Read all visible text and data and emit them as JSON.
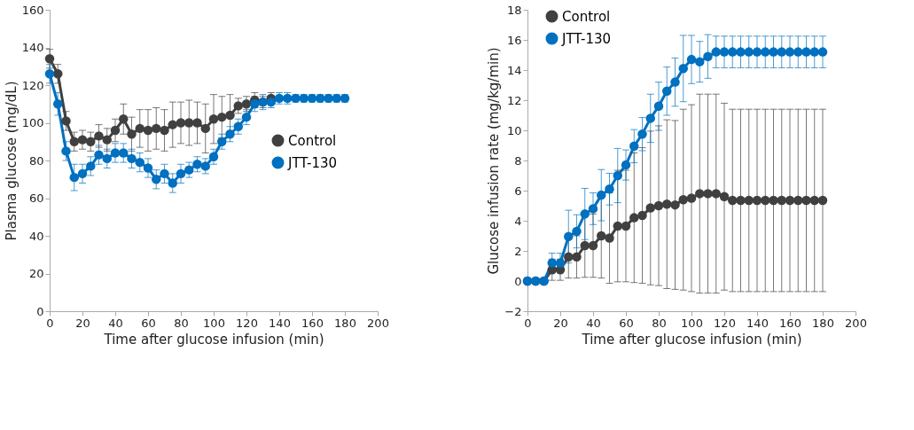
{
  "chart_data": [
    {
      "type": "line",
      "xlabel": "Time after glucose infusion (min)",
      "ylabel": "Plasma glucose (mg/dL)",
      "x": [
        0,
        5,
        10,
        15,
        20,
        25,
        30,
        35,
        40,
        45,
        50,
        55,
        60,
        65,
        70,
        75,
        80,
        85,
        90,
        95,
        100,
        105,
        110,
        115,
        120,
        125,
        130,
        135,
        140,
        145,
        150,
        155,
        160,
        165,
        170,
        175,
        180
      ],
      "xlim": [
        0,
        200
      ],
      "xticks": [
        0,
        20,
        40,
        60,
        80,
        100,
        120,
        140,
        160,
        180,
        200
      ],
      "ylim": [
        0,
        160
      ],
      "yticks": [
        0,
        20,
        40,
        60,
        80,
        100,
        120,
        140,
        160
      ],
      "grid": false,
      "legend": "right",
      "marker": "circle",
      "line_style": "solid",
      "series": [
        {
          "name": "Control",
          "color": "#404040",
          "values": [
            134,
            126,
            101,
            90,
            91,
            90,
            93,
            91,
            96,
            102,
            94,
            97,
            96,
            97,
            96,
            99,
            100,
            100,
            100,
            97,
            102,
            103,
            104,
            109,
            110,
            112,
            111,
            113,
            null,
            null,
            null,
            null,
            null,
            null,
            null,
            null,
            null
          ],
          "errors": [
            5,
            5,
            5,
            5,
            5,
            5,
            6,
            6,
            6,
            8,
            9,
            10,
            11,
            11,
            11,
            12,
            11,
            12,
            11,
            13,
            13,
            11,
            11,
            4,
            4,
            4,
            3,
            3,
            null,
            null,
            null,
            null,
            null,
            null,
            null,
            null,
            null
          ]
        },
        {
          "name": "JTT-130",
          "color": "#0070c0",
          "values": [
            126,
            110,
            85,
            71,
            73,
            77,
            83,
            81,
            84,
            84,
            81,
            79,
            76,
            70,
            73,
            68,
            73,
            75,
            78,
            77,
            82,
            90,
            94,
            98,
            103,
            110,
            111,
            111,
            113,
            113,
            113,
            113,
            113,
            113,
            113,
            113,
            113
          ],
          "errors": [
            5,
            6,
            5,
            7,
            5,
            5,
            5,
            5,
            5,
            5,
            5,
            5,
            5,
            5,
            5,
            5,
            5,
            4,
            4,
            4,
            4,
            4,
            4,
            4,
            4,
            4,
            4,
            3,
            3,
            3,
            2,
            2,
            2,
            2,
            2,
            2,
            2
          ]
        }
      ]
    },
    {
      "type": "line",
      "xlabel": "Time after glucose infusion (min)",
      "ylabel": "Glucose infusion rate (mg/kg/min)",
      "x": [
        0,
        5,
        10,
        15,
        20,
        25,
        30,
        35,
        40,
        45,
        50,
        55,
        60,
        65,
        70,
        75,
        80,
        85,
        90,
        95,
        100,
        105,
        110,
        115,
        120,
        125,
        130,
        135,
        140,
        145,
        150,
        155,
        160,
        165,
        170,
        175,
        180
      ],
      "xlim": [
        0,
        200
      ],
      "xticks": [
        0,
        20,
        40,
        60,
        80,
        100,
        120,
        140,
        160,
        180,
        200
      ],
      "ylim": [
        -2,
        18
      ],
      "yticks": [
        -2,
        0,
        2,
        4,
        6,
        8,
        10,
        12,
        14,
        16,
        18
      ],
      "grid": false,
      "legend": "top left",
      "marker": "circle",
      "line_style": "solid",
      "series": [
        {
          "name": "Control",
          "color": "#404040",
          "values": [
            0,
            0,
            0,
            0.75,
            0.75,
            1.6,
            1.6,
            2.35,
            2.35,
            3.0,
            2.85,
            3.65,
            3.65,
            4.2,
            4.35,
            4.85,
            5.0,
            5.1,
            5.05,
            5.4,
            5.5,
            5.8,
            5.8,
            5.8,
            5.6,
            5.35,
            5.35,
            5.35,
            5.35,
            5.35,
            5.35,
            5.35,
            5.35,
            5.35,
            5.35,
            5.35,
            5.35
          ],
          "errors": [
            0,
            0,
            0,
            0.7,
            0.7,
            1.4,
            1.4,
            2.1,
            2.1,
            2.8,
            3.0,
            3.7,
            3.7,
            4.3,
            4.5,
            5.1,
            5.3,
            5.6,
            5.6,
            6.0,
            6.2,
            6.6,
            6.6,
            6.6,
            6.2,
            6.05,
            6.05,
            6.05,
            6.05,
            6.05,
            6.05,
            6.05,
            6.05,
            6.05,
            6.05,
            6.05,
            6.05
          ]
        },
        {
          "name": "JTT-130",
          "color": "#0070c0",
          "values": [
            0,
            0,
            0,
            1.2,
            1.2,
            2.95,
            3.3,
            4.45,
            4.8,
            5.7,
            6.1,
            7.0,
            7.7,
            8.95,
            9.75,
            10.8,
            11.6,
            12.6,
            13.2,
            14.1,
            14.7,
            14.55,
            14.9,
            15.2,
            15.2,
            15.2,
            15.2,
            15.2,
            15.2,
            15.2,
            15.2,
            15.2,
            15.2,
            15.2,
            15.2,
            15.2,
            15.2
          ],
          "errors": [
            0,
            0,
            0,
            0.65,
            0.65,
            1.75,
            1.1,
            1.7,
            1.05,
            1.7,
            1.05,
            1.8,
            1.0,
            1.1,
            1.1,
            1.6,
            1.6,
            1.6,
            1.6,
            2.2,
            1.6,
            1.35,
            1.45,
            1.05,
            1.05,
            1.05,
            1.05,
            1.05,
            1.05,
            1.05,
            1.05,
            1.05,
            1.05,
            1.05,
            1.05,
            1.05,
            1.05
          ]
        }
      ]
    }
  ]
}
